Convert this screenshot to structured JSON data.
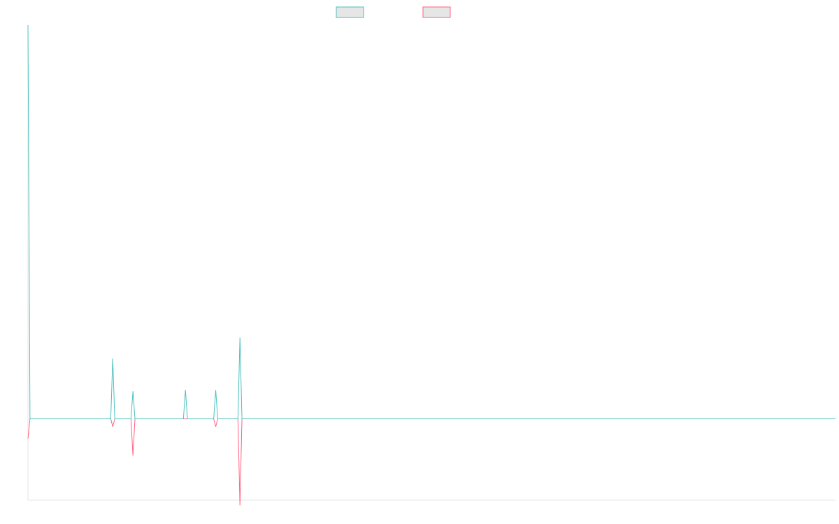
{
  "chart_data": {
    "type": "line",
    "title": "",
    "xlabel": "",
    "ylabel": "",
    "grid": false,
    "legend_placement": "top-center",
    "ylim": [
      -31,
      150
    ],
    "x": [
      0,
      1,
      2,
      3,
      4,
      5,
      6,
      7,
      8,
      9,
      10,
      11,
      12,
      13,
      14,
      15,
      16,
      17,
      18,
      19,
      20,
      21,
      22,
      23,
      24,
      25,
      26,
      27,
      28,
      29,
      30,
      31,
      32,
      33,
      34,
      35,
      36,
      37,
      38,
      39,
      40,
      41,
      42,
      43,
      44,
      45,
      46,
      47,
      48,
      49,
      50,
      51,
      52,
      53,
      54,
      55,
      56,
      57,
      58,
      59,
      60,
      61,
      62,
      63,
      64,
      65,
      66,
      67,
      68,
      69,
      70,
      71,
      72,
      73,
      74,
      75,
      76,
      77,
      78,
      79,
      80,
      81,
      82,
      83,
      84,
      85,
      86,
      87,
      88,
      89,
      90,
      91,
      92,
      93,
      94,
      95,
      96,
      97,
      98,
      99,
      100,
      101,
      102,
      103,
      104,
      105,
      106,
      107,
      108,
      109,
      110,
      111,
      112,
      113,
      114,
      115,
      116,
      117,
      118,
      119,
      120,
      121,
      122,
      123,
      124,
      125,
      126,
      127,
      128,
      129,
      130,
      131,
      132,
      133,
      134,
      135,
      136,
      137,
      138,
      139,
      140,
      141,
      142,
      143,
      144,
      145,
      146,
      147,
      148,
      149,
      150,
      151,
      152,
      153,
      154,
      155,
      156,
      157,
      158,
      159,
      160,
      161,
      162,
      163,
      164,
      165,
      166,
      167,
      168,
      169,
      170,
      171,
      172,
      173,
      174,
      175,
      176,
      177,
      178,
      179,
      180,
      181,
      182,
      183,
      184,
      185,
      186,
      187,
      188,
      189,
      190,
      191,
      192,
      193,
      194,
      195,
      196,
      197,
      198,
      199,
      200,
      201,
      202,
      203,
      204,
      205,
      206,
      207,
      208,
      209,
      210,
      211,
      212,
      213,
      214,
      215,
      216,
      217,
      218,
      219,
      220,
      221,
      222,
      223,
      224,
      225,
      226,
      227,
      228,
      229,
      230,
      231,
      232,
      233,
      234,
      235,
      236,
      237,
      238,
      239,
      240,
      241,
      242,
      243,
      244,
      245,
      246,
      247,
      248,
      249,
      250,
      251,
      252,
      253,
      254,
      255,
      256,
      257,
      258,
      259,
      260,
      261,
      262,
      263,
      264,
      265,
      266,
      267,
      268,
      269,
      270,
      271,
      272,
      273,
      274,
      275,
      276,
      277,
      278,
      279,
      280,
      281,
      282,
      283,
      284,
      285,
      286,
      287,
      288,
      289,
      290,
      291,
      292,
      293,
      294,
      295,
      296,
      297,
      298,
      299,
      300,
      301,
      302,
      303,
      304,
      305,
      306,
      307,
      308,
      309,
      310,
      311,
      312,
      313,
      314,
      315,
      316,
      317,
      318,
      319,
      320,
      321,
      322,
      323,
      324,
      325,
      326,
      327,
      328,
      329,
      330,
      331,
      332,
      333,
      334,
      335,
      336,
      337,
      338,
      339,
      340,
      341,
      342,
      343,
      344,
      345,
      346,
      347,
      348,
      349,
      350,
      351,
      352,
      353,
      354,
      355,
      356,
      357,
      358,
      359,
      360,
      361,
      362,
      363,
      364,
      365,
      366,
      367,
      368,
      369,
      370,
      371,
      372,
      373,
      374,
      375,
      376,
      377,
      378,
      379,
      380,
      381,
      382,
      383,
      384,
      385,
      386,
      387,
      388,
      389,
      390,
      391,
      392,
      393,
      394,
      395,
      396,
      397,
      398,
      399,
      400
    ],
    "series": [
      {
        "color": "#4bc0c0",
        "points": [
          [
            0,
            150
          ],
          [
            1,
            0
          ],
          [
            41,
            0
          ],
          [
            42,
            23
          ],
          [
            43,
            0
          ],
          [
            51,
            0
          ],
          [
            52,
            10.5
          ],
          [
            53,
            0
          ],
          [
            77,
            0
          ],
          [
            78,
            11
          ],
          [
            79,
            0
          ],
          [
            92,
            0
          ],
          [
            93,
            11
          ],
          [
            94,
            0
          ],
          [
            104,
            0
          ],
          [
            105,
            31
          ],
          [
            106,
            0
          ],
          [
            400,
            0
          ]
        ]
      },
      {
        "color": "#ff6384",
        "points": [
          [
            0,
            -7.5
          ],
          [
            1,
            0
          ],
          [
            41,
            0
          ],
          [
            42,
            -3
          ],
          [
            43,
            0
          ],
          [
            51,
            0
          ],
          [
            52,
            -14
          ],
          [
            53,
            0
          ],
          [
            77,
            0
          ],
          [
            78,
            0
          ],
          [
            79,
            0
          ],
          [
            92,
            0
          ],
          [
            93,
            -3
          ],
          [
            94,
            0
          ],
          [
            104,
            0
          ],
          [
            105,
            -33
          ],
          [
            106,
            0
          ],
          [
            400,
            0
          ]
        ]
      }
    ]
  }
}
